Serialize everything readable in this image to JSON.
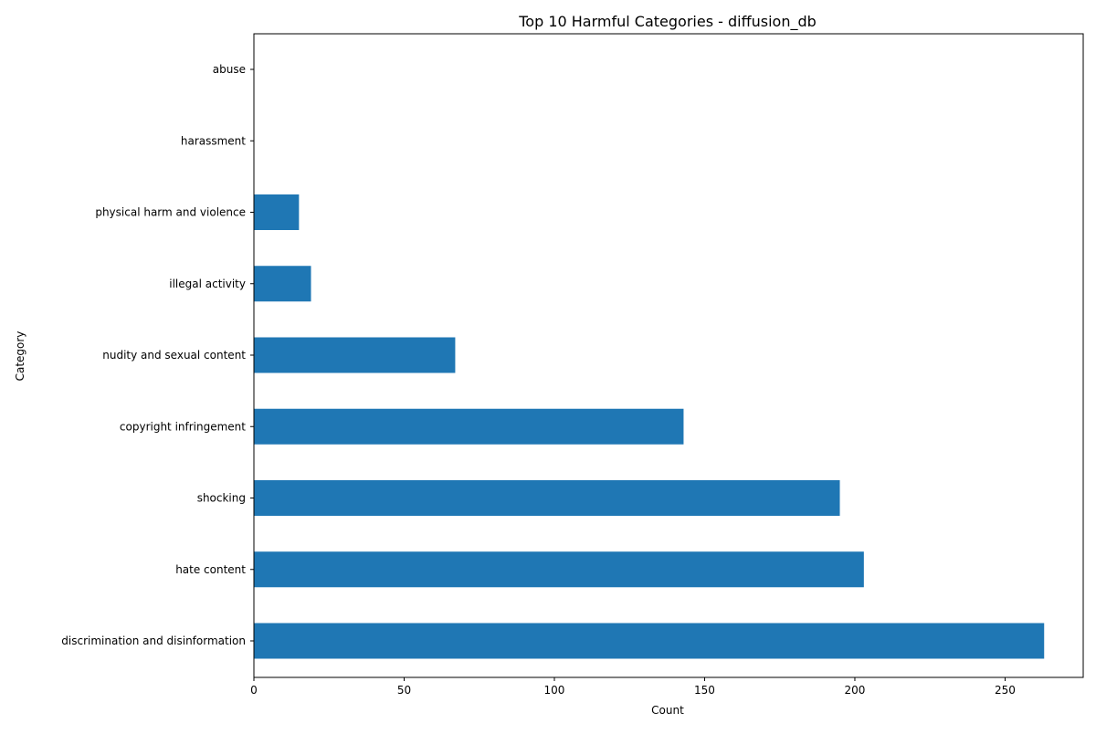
{
  "chart_data": {
    "type": "bar",
    "orientation": "horizontal",
    "title": "Top 10 Harmful Categories - diffusion_db",
    "xlabel": "Count",
    "ylabel": "Category",
    "xlim": [
      0,
      276
    ],
    "x_ticks": [
      0,
      50,
      100,
      150,
      200,
      250
    ],
    "categories": [
      "discrimination and disinformation",
      "hate content",
      "shocking",
      "copyright infringement",
      "nudity and sexual content",
      "illegal activity",
      "physical harm and violence",
      "harassment",
      "abuse"
    ],
    "values": [
      263,
      203,
      195,
      143,
      67,
      19,
      15,
      0,
      0
    ],
    "bar_color": "#1f77b4",
    "grid": false,
    "legend": "none"
  }
}
